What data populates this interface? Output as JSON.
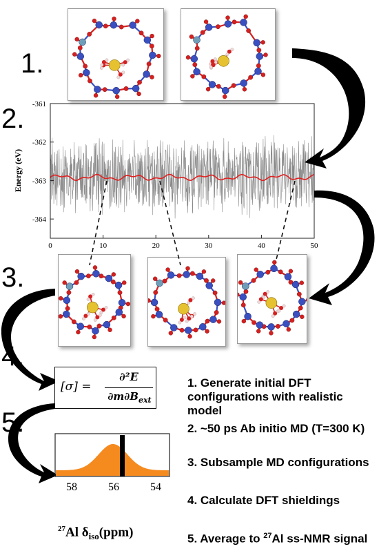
{
  "steps": [
    "1.",
    "2.",
    "3.",
    "4.",
    "5."
  ],
  "energy_plot": {
    "ylabel": "Energy (eV)",
    "y_ticks": [
      "-361",
      "-362",
      "-363",
      "-364"
    ],
    "x_ticks": [
      "0",
      "10",
      "20",
      "30",
      "40",
      "50"
    ],
    "ylim": [
      -364.5,
      -361
    ],
    "xlim": [
      0,
      50
    ],
    "raw_color": "#8a8a8a",
    "avg_color": "#e02020"
  },
  "formula": {
    "lhs": "[σ] =",
    "numerator": "∂²E",
    "denominator": "∂m∂B",
    "denominator_sub": "ext"
  },
  "nmr": {
    "x_ticks": [
      "58",
      "56",
      "54"
    ],
    "xlabel_sup": "27",
    "xlabel_main": "Al δ",
    "xlabel_sub": "iso",
    "xlabel_unit": "(ppm)",
    "fill_color": "#f58a1f"
  },
  "description": {
    "line1": "1. Generate initial DFT",
    "line2": "configurations with realistic",
    "line3": "model",
    "line4": "2. ~50 ps Ab initio MD (T=300 K)",
    "line5": "3. Subsample MD configurations",
    "line6": "4. Calculate DFT shieldings",
    "line7a": "5. Average to ",
    "line7sup": "27",
    "line7b": "Al ss-NMR signal"
  },
  "colors": {
    "silicon": "#3a4fc0",
    "oxygen": "#d42020",
    "aluminum": "#6f9fb8",
    "metal": "#e6c230",
    "hydrogen": "#f0d8d8"
  }
}
